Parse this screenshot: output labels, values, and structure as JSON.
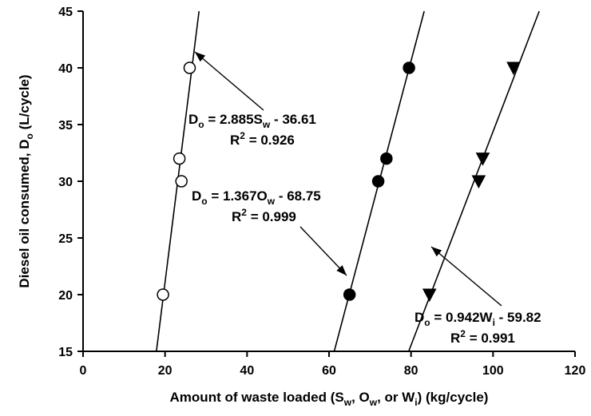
{
  "chart_data": {
    "type": "scatter",
    "xlabel": {
      "pre": "Amount of waste loaded (S",
      "s1": "w",
      "mid1": ", O",
      "s2": "w",
      "mid2": ", or W",
      "s3": "i",
      "post": ") (kg/cycle)"
    },
    "ylabel": {
      "pre": "Diesel oil consumed, D",
      "sub": "o",
      "post": " (L/cycle)"
    },
    "xlim": [
      0,
      120
    ],
    "ylim": [
      15,
      45
    ],
    "xticks": [
      0,
      20,
      40,
      60,
      80,
      100,
      120
    ],
    "yticks": [
      15,
      20,
      25,
      30,
      35,
      40,
      45
    ],
    "grid": false,
    "series": [
      {
        "marker": "open-circle",
        "color": "#000000",
        "points": [
          {
            "x": 19.5,
            "y": 20
          },
          {
            "x": 23.5,
            "y": 32
          },
          {
            "x": 24,
            "y": 30
          },
          {
            "x": 26,
            "y": 40
          }
        ],
        "fit": {
          "slope": 2.885,
          "intercept": -36.61
        },
        "equation": {
          "lhs": "D",
          "lhs_sub": "o",
          "mid": " = 2.885S",
          "var_sub": "w",
          "rhs": " - 36.61",
          "r2_label": "R",
          "r2_sup": "2",
          "r2_value": " = 0.926"
        }
      },
      {
        "marker": "filled-circle",
        "color": "#000000",
        "points": [
          {
            "x": 65,
            "y": 20
          },
          {
            "x": 72,
            "y": 30
          },
          {
            "x": 74,
            "y": 32
          },
          {
            "x": 79.5,
            "y": 40
          }
        ],
        "fit": {
          "slope": 1.367,
          "intercept": -68.75
        },
        "equation": {
          "lhs": "D",
          "lhs_sub": "o",
          "mid": " = 1.367O",
          "var_sub": "w",
          "rhs": " - 68.75",
          "r2_label": "R",
          "r2_sup": "2",
          "r2_value": " = 0.999"
        }
      },
      {
        "marker": "filled-triangle-down",
        "color": "#000000",
        "points": [
          {
            "x": 84.5,
            "y": 20
          },
          {
            "x": 96.5,
            "y": 30
          },
          {
            "x": 97.5,
            "y": 32
          },
          {
            "x": 105,
            "y": 40
          }
        ],
        "fit": {
          "slope": 0.942,
          "intercept": -59.82
        },
        "equation": {
          "lhs": "D",
          "lhs_sub": "o",
          "mid": " = 0.942W",
          "var_sub": "i",
          "rhs": " - 59.82",
          "r2_label": "R",
          "r2_sup": "2",
          "r2_value": " =  0.991"
        }
      }
    ]
  }
}
